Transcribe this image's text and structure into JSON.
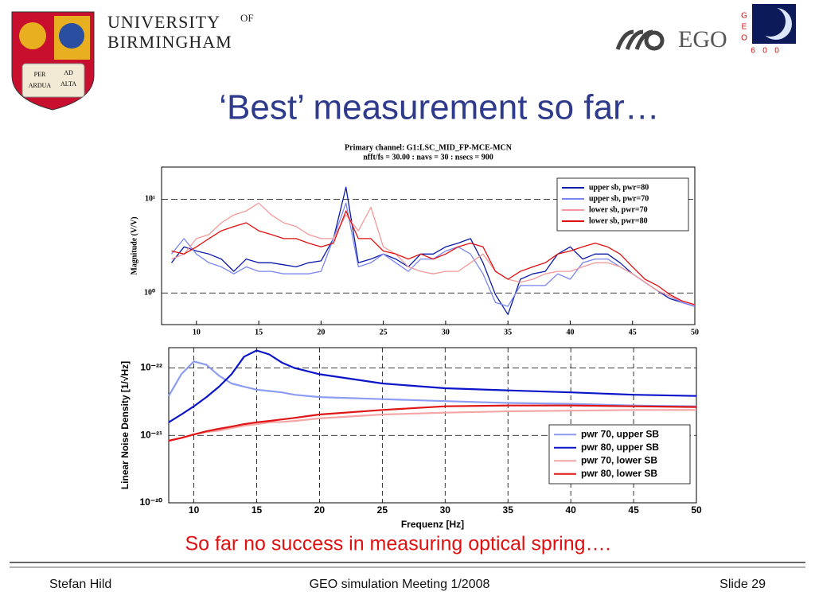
{
  "header": {
    "university": "UNIVERSITY",
    "of": "OF",
    "city": "BIRMINGHAM",
    "motto": [
      "PER",
      "AD",
      "ARDUA",
      "ALTA"
    ],
    "ego": "EGO",
    "geo": [
      "G",
      "E",
      "O",
      "6",
      "0",
      "0"
    ]
  },
  "title": "‘Best’ measurement so far…",
  "chart_data": [
    {
      "type": "line",
      "title": "Primary channel: G1:LSC_MID_FP-MCE-MCN",
      "subtitle": "nfft/fs = 30.00 : navs = 30 : nsecs = 900",
      "ylabel": "Magnitude (V/V)",
      "log_y": true,
      "grid": "y",
      "legend": "upper right",
      "x": [
        8,
        9,
        10,
        11,
        12,
        13,
        14,
        15,
        16,
        17,
        18,
        19,
        20,
        21,
        22,
        23,
        24,
        25,
        26,
        27,
        28,
        29,
        30,
        31,
        32,
        33,
        34,
        35,
        36,
        37,
        38,
        39,
        40,
        41,
        42,
        43,
        44,
        45,
        46,
        47,
        48,
        49,
        50
      ],
      "xlim": [
        7.2,
        50
      ],
      "xticks": [
        10,
        15,
        20,
        25,
        30,
        35,
        40,
        45,
        50
      ],
      "ylim": [
        0.46,
        22
      ],
      "yticks": [
        {
          "value": 10,
          "label": "10¹"
        },
        {
          "value": 1,
          "label": "10⁰"
        }
      ],
      "series": [
        {
          "name": "upper sb, pwr=80",
          "color": "#0a1aa8",
          "values": [
            2.1,
            3.1,
            2.8,
            2.6,
            2.3,
            1.7,
            2.3,
            2.1,
            2.1,
            2.0,
            1.9,
            2.1,
            2.2,
            3.8,
            13.4,
            2.1,
            2.3,
            2.6,
            2.3,
            1.9,
            2.6,
            2.6,
            3.1,
            3.4,
            3.8,
            2.1,
            0.96,
            0.59,
            1.4,
            1.6,
            1.7,
            2.6,
            3.1,
            2.3,
            2.6,
            2.6,
            2.1,
            1.6,
            1.3,
            1.06,
            0.87,
            0.79,
            0.72
          ]
        },
        {
          "name": "upper sb, pwr=70",
          "color": "#7a86f0",
          "values": [
            2.6,
            3.8,
            2.6,
            2.1,
            1.9,
            1.6,
            1.9,
            1.7,
            1.7,
            1.6,
            1.6,
            1.6,
            1.7,
            3.8,
            9.1,
            1.9,
            2.1,
            2.6,
            2.1,
            1.7,
            2.3,
            2.3,
            2.8,
            3.1,
            2.6,
            1.6,
            0.79,
            0.72,
            1.2,
            1.2,
            1.2,
            1.6,
            1.4,
            2.1,
            2.3,
            2.3,
            1.9,
            1.6,
            1.3,
            1.06,
            0.92,
            0.79,
            0.72
          ]
        },
        {
          "name": "lower sb, pwr=70",
          "color": "#f29a9a",
          "values": [
            2.3,
            2.6,
            3.8,
            4.2,
            5.6,
            6.8,
            7.5,
            9.1,
            6.8,
            5.6,
            5.1,
            4.2,
            3.8,
            3.8,
            6.8,
            4.6,
            8.2,
            3.1,
            2.6,
            1.9,
            1.7,
            1.6,
            1.7,
            1.7,
            2.1,
            2.6,
            1.7,
            1.4,
            1.3,
            1.4,
            1.6,
            1.7,
            1.7,
            1.9,
            2.1,
            2.1,
            1.9,
            1.6,
            1.3,
            1.06,
            0.92,
            0.82,
            0.75
          ]
        },
        {
          "name": "lower sb, pwr=80",
          "color": "#e01010",
          "values": [
            2.8,
            2.6,
            3.1,
            3.8,
            4.6,
            5.1,
            5.6,
            4.6,
            4.2,
            3.8,
            3.8,
            3.4,
            3.1,
            3.4,
            7.5,
            3.8,
            3.8,
            2.8,
            2.6,
            2.3,
            2.6,
            2.3,
            2.6,
            3.1,
            3.4,
            3.1,
            1.7,
            1.4,
            1.7,
            1.9,
            2.1,
            2.6,
            2.8,
            3.1,
            3.4,
            3.1,
            2.6,
            1.9,
            1.4,
            1.2,
            0.96,
            0.82,
            0.75
          ]
        }
      ]
    },
    {
      "type": "line",
      "xlabel": "Frequenz [Hz]",
      "ylabel": "Linear Noise Density [1/√Hz]",
      "log_y": true,
      "grid": "both",
      "legend": "lower right",
      "x": [
        8,
        9,
        10,
        11,
        12,
        13,
        14,
        15,
        16,
        17,
        18,
        20,
        25,
        30,
        35,
        40,
        45,
        50
      ],
      "xlim": [
        8,
        50
      ],
      "xticks": [
        10,
        15,
        20,
        25,
        30,
        35,
        40,
        45,
        50
      ],
      "ylim": [
        1e-20,
        5e-23
      ],
      "yticks": [
        {
          "value": 1e-22,
          "label": "10⁻²²"
        },
        {
          "value": 1e-21,
          "label": "10⁻²¹"
        },
        {
          "value": 1e-20,
          "label": "10⁻²⁰"
        }
      ],
      "series": [
        {
          "name": "pwr 70, upper SB",
          "color": "#8c9cf2",
          "values": [
            2.6e-22,
            1.24e-22,
            8e-23,
            9e-23,
            1.3e-22,
            1.7e-22,
            1.9e-22,
            2.1e-22,
            2.2e-22,
            2.3e-22,
            2.5e-22,
            2.7e-22,
            2.9e-22,
            3.1e-22,
            3.3e-22,
            3.4e-22,
            3.6e-22,
            3.7e-22
          ]
        },
        {
          "name": "pwr 80, upper SB",
          "color": "#0a14c8",
          "values": [
            6.4e-22,
            4.9e-22,
            3.7e-22,
            2.7e-22,
            1.9e-22,
            1.24e-22,
            6.8e-23,
            5.5e-23,
            6.3e-23,
            8.3e-23,
            1e-22,
            1.24e-22,
            1.7e-22,
            2e-22,
            2.15e-22,
            2.3e-22,
            2.5e-22,
            2.6e-22
          ]
        },
        {
          "name": "pwr 70, lower SB",
          "color": "#f4a6a6",
          "values": [
            1.2e-21,
            1.09e-21,
            9.7e-22,
            8.9e-22,
            8.5e-22,
            7.8e-22,
            7.2e-22,
            6.8e-22,
            6.4e-22,
            6.3e-22,
            6.1e-22,
            5.6e-22,
            4.9e-22,
            4.6e-22,
            4.4e-22,
            4.3e-22,
            4.2e-22,
            4.2e-22
          ]
        },
        {
          "name": "pwr 80, lower SB",
          "color": "#e01414",
          "values": [
            1.2e-21,
            1.09e-21,
            9.7e-22,
            8.7e-22,
            8e-22,
            7.4e-22,
            6.8e-22,
            6.4e-22,
            6.1e-22,
            5.8e-22,
            5.5e-22,
            4.9e-22,
            4.2e-22,
            3.7e-22,
            3.6e-22,
            3.6e-22,
            3.7e-22,
            3.8e-22
          ]
        }
      ]
    }
  ],
  "caption": "So far no success in measuring optical spring….",
  "footer": {
    "author": "Stefan Hild",
    "event": "GEO simulation Meeting 1/2008",
    "slide": "Slide 29"
  }
}
